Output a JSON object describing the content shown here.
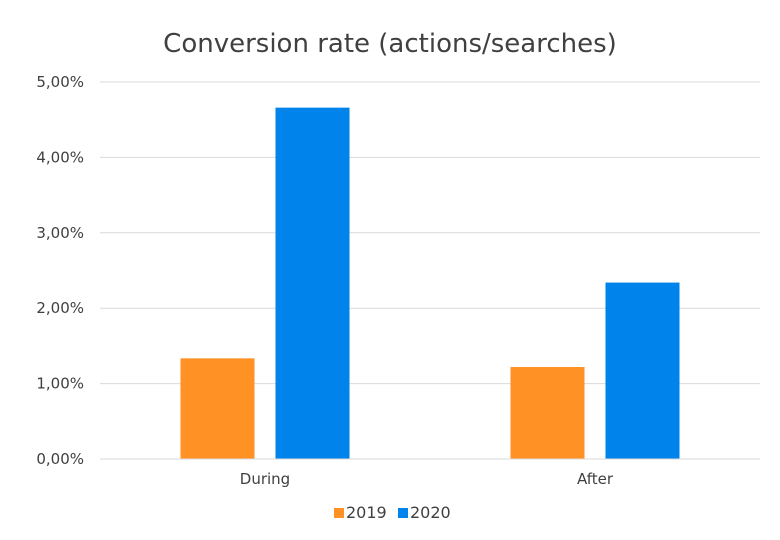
{
  "chart_data": {
    "type": "bar",
    "title": "Conversion rate (actions/searches)",
    "categories": [
      "During",
      "After"
    ],
    "series": [
      {
        "name": "2019",
        "values": [
          0.01335,
          0.0122
        ],
        "color": "#FF9125"
      },
      {
        "name": "2020",
        "values": [
          0.0466,
          0.0234
        ],
        "color": "#0083EA"
      }
    ],
    "ylim": [
      0,
      0.05
    ],
    "yticks": [
      0,
      0.01,
      0.02,
      0.03,
      0.04,
      0.05
    ],
    "ytick_labels": [
      "0,00%",
      "1,00%",
      "2,00%",
      "3,00%",
      "4,00%",
      "5,00%"
    ],
    "grid": true,
    "legend_position": "bottom"
  }
}
